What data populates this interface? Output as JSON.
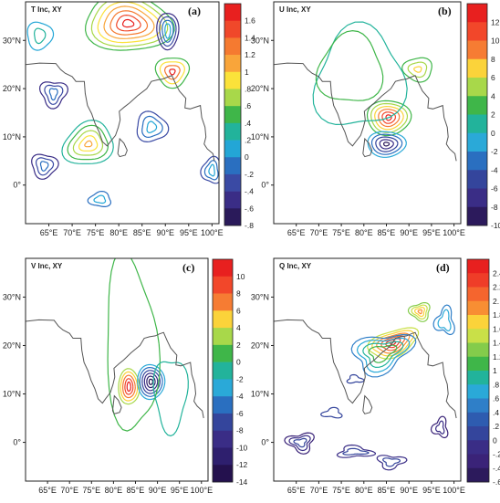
{
  "chart_data": [
    {
      "type": "contour",
      "label": "(a)",
      "title": "T Inc, XY",
      "xticks": [
        "65°E",
        "70°E",
        "75°E",
        "80°E",
        "85°E",
        "90°E",
        "95°E",
        "100°E"
      ],
      "yticks": [
        "30°N",
        "20°N",
        "10°N",
        "0°"
      ],
      "colorbar_levels": [
        "1.6",
        "1.4",
        "1.2",
        "1",
        ".8",
        ".6",
        ".4",
        ".2",
        "0",
        "-.2",
        "-.4",
        "-.6",
        "-.8"
      ],
      "features": [
        {
          "name": "maximum",
          "lon": 82,
          "lat": 33,
          "value": 1.6
        },
        {
          "name": "maximum",
          "lon": 91.5,
          "lat": 23.5,
          "value": 1.6
        },
        {
          "name": "maximum",
          "lon": 73.5,
          "lat": 8.5,
          "value": 1.2
        }
      ]
    },
    {
      "type": "contour",
      "label": "(b)",
      "title": "U Inc, XY",
      "xticks": [
        "65°E",
        "70°E",
        "75°E",
        "80°E",
        "85°E",
        "90°E",
        "95°E",
        "100°E"
      ],
      "yticks": [
        "30°N",
        "20°N",
        "10°N",
        "0°"
      ],
      "colorbar_levels": [
        "12",
        "10",
        "8",
        "6",
        "4",
        "2",
        "0",
        "-2",
        "-4",
        "-6",
        "-8",
        "-10"
      ],
      "features": [
        {
          "name": "maximum",
          "lon": 85.5,
          "lat": 14,
          "value": 12
        },
        {
          "name": "minimum",
          "lon": 85,
          "lat": 8.5,
          "value": -10
        },
        {
          "name": "maximum",
          "lon": 92,
          "lat": 24,
          "value": 6
        }
      ]
    },
    {
      "type": "contour",
      "label": "(c)",
      "title": "V Inc, XY",
      "xticks": [
        "65°E",
        "70°E",
        "75°E",
        "80°E",
        "85°E",
        "90°E",
        "95°E",
        "100°E"
      ],
      "yticks": [
        "30°N",
        "20°N",
        "10°N",
        "0°"
      ],
      "colorbar_levels": [
        "10",
        "8",
        "6",
        "4",
        "2",
        "0",
        "-2",
        "-4",
        "-6",
        "-8",
        "-10",
        "-12",
        "-14"
      ],
      "features": [
        {
          "name": "maximum",
          "lon": 83.5,
          "lat": 11.5,
          "value": 10
        },
        {
          "name": "minimum",
          "lon": 88.5,
          "lat": 12.5,
          "value": -14
        }
      ]
    },
    {
      "type": "contour",
      "label": "(d)",
      "title": "Q Inc, XY",
      "xticks": [
        "65°E",
        "70°E",
        "75°E",
        "80°E",
        "85°E",
        "90°E",
        "95°E",
        "100°E"
      ],
      "yticks": [
        "30°N",
        "20°N",
        "10°N",
        "0°"
      ],
      "colorbar_levels": [
        "2.4",
        "2.2",
        "2.",
        "1.8",
        "1.6",
        "1.4",
        "1.2",
        "1",
        ".8",
        ".6",
        ".4",
        ".2",
        "0",
        "-.2",
        "-.4",
        "-.6"
      ],
      "features": [
        {
          "name": "maximum",
          "lon": 86.5,
          "lat": 20.5,
          "value": 2.4
        },
        {
          "name": "maximum",
          "lon": 92.5,
          "lat": 27,
          "value": 1.4
        }
      ]
    }
  ]
}
